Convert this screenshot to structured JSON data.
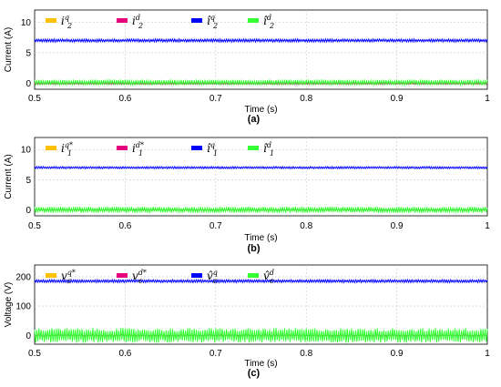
{
  "chart_data": [
    {
      "type": "line",
      "panel_label": "(a)",
      "xlabel": "Time (s)",
      "ylabel": "Current (A)",
      "xlim": [
        0.5,
        1.0
      ],
      "ylim": [
        -1,
        12
      ],
      "xticks": [
        "0.5",
        "0.6",
        "0.7",
        "0.8",
        "0.9",
        "1"
      ],
      "xtick_values": [
        0.5,
        0.6,
        0.7,
        0.8,
        0.9,
        1.0
      ],
      "yticks": [
        "0",
        "5",
        "10"
      ],
      "ytick_values": [
        0,
        5,
        10
      ],
      "grid": true,
      "legend_position": "top",
      "series": [
        {
          "name": "i2q",
          "name_main": "i",
          "name_sup": "q",
          "name_sub": "2",
          "color": "#FFC000",
          "mean": 7.0,
          "ripple": 0.2,
          "hidden": true
        },
        {
          "name": "i2d",
          "name_main": "i",
          "name_sup": "d",
          "name_sub": "2",
          "color": "#E6007E",
          "mean": -0.1,
          "ripple": 0.15
        },
        {
          "name": "î2q",
          "name_main": "î",
          "name_sup": "q",
          "name_sub": "2",
          "color": "#0000FF",
          "mean": 7.0,
          "ripple": 0.25
        },
        {
          "name": "î2d",
          "name_main": "î",
          "name_sup": "d",
          "name_sub": "2",
          "color": "#33FF33",
          "mean": 0.1,
          "ripple": 0.45
        }
      ]
    },
    {
      "type": "line",
      "panel_label": "(b)",
      "xlabel": "Time (s)",
      "ylabel": "Current (A)",
      "xlim": [
        0.5,
        1.0
      ],
      "ylim": [
        -1,
        12
      ],
      "xticks": [
        "0.5",
        "0.6",
        "0.7",
        "0.8",
        "0.9",
        "1"
      ],
      "xtick_values": [
        0.5,
        0.6,
        0.7,
        0.8,
        0.9,
        1.0
      ],
      "yticks": [
        "0",
        "5",
        "10"
      ],
      "ytick_values": [
        0,
        5,
        10
      ],
      "grid": true,
      "legend_position": "top",
      "series": [
        {
          "name": "i1q*",
          "name_main": "i",
          "name_sup": "q*",
          "name_sub": "1",
          "color": "#FFC000",
          "mean": 7.0,
          "ripple": 0.1,
          "hidden": true
        },
        {
          "name": "i1d*",
          "name_main": "i",
          "name_sup": "d*",
          "name_sub": "1",
          "color": "#E6007E",
          "mean": 0.0,
          "ripple": 0.1
        },
        {
          "name": "î1q",
          "name_main": "î",
          "name_sup": "q",
          "name_sub": "1",
          "color": "#0000FF",
          "mean": 7.0,
          "ripple": 0.18
        },
        {
          "name": "î1d",
          "name_main": "î",
          "name_sup": "d",
          "name_sub": "1",
          "color": "#33FF33",
          "mean": 0.0,
          "ripple": 0.5
        }
      ]
    },
    {
      "type": "line",
      "panel_label": "(c)",
      "xlabel": "Time (s)",
      "ylabel": "Voltage (V)",
      "xlim": [
        0.5,
        1.0
      ],
      "ylim": [
        -30,
        240
      ],
      "xticks": [
        "0.5",
        "0.6",
        "0.7",
        "0.8",
        "0.9",
        "1"
      ],
      "xtick_values": [
        0.5,
        0.6,
        0.7,
        0.8,
        0.9,
        1.0
      ],
      "yticks": [
        "0",
        "100",
        "200"
      ],
      "ytick_values": [
        0,
        100,
        200
      ],
      "grid": true,
      "legend_position": "top",
      "series": [
        {
          "name": "vcq*",
          "name_main": "v",
          "name_sup": "q*",
          "name_sub": "c",
          "color": "#FFC000",
          "mean": 185,
          "ripple": 3,
          "hidden": true
        },
        {
          "name": "vcd*",
          "name_main": "v",
          "name_sup": "d*",
          "name_sub": "c",
          "color": "#E6007E",
          "mean": 0,
          "ripple": 3
        },
        {
          "name": "v̂cq",
          "name_main": "v̂",
          "name_sup": "q",
          "name_sub": "c",
          "color": "#0000FF",
          "mean": 185,
          "ripple": 5
        },
        {
          "name": "v̂cd",
          "name_main": "v̂",
          "name_sup": "d",
          "name_sub": "c",
          "color": "#33FF33",
          "mean": 0,
          "ripple": 25
        }
      ]
    }
  ]
}
